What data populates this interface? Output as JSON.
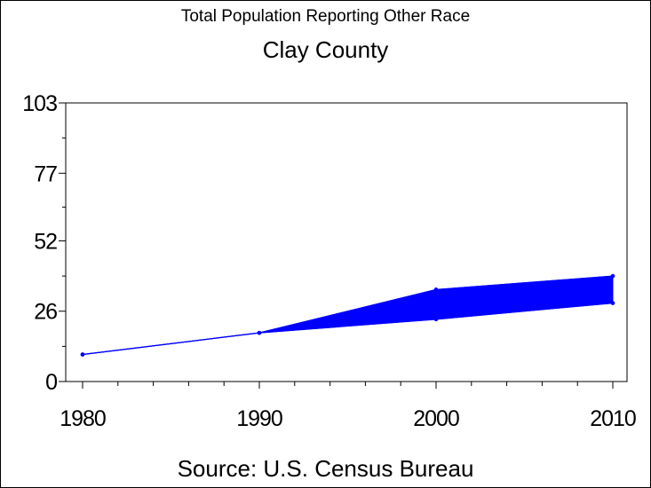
{
  "chart_data": {
    "type": "area",
    "title": "Total Population Reporting Other Race",
    "subtitle": "Clay County",
    "footnote": "Source: U.S. Census Bureau",
    "xlabel": "",
    "ylabel": "",
    "x": [
      1980,
      1990,
      2000,
      2010
    ],
    "x_tick_labels": [
      "1980",
      "1990",
      "2000",
      "2010"
    ],
    "y_ticks": [
      0,
      26,
      52,
      77,
      103
    ],
    "y_tick_labels": [
      "0",
      "26",
      "52",
      "77",
      "103"
    ],
    "ylim": [
      0,
      103
    ],
    "xlim": [
      1980,
      2010
    ],
    "series": [
      {
        "name": "",
        "values": [
          10,
          18,
          34,
          39
        ]
      },
      {
        "values": [
          10,
          18,
          23,
          29
        ]
      }
    ],
    "fill_between_series": true,
    "color": "#0000ff",
    "grid": false,
    "legend": "none"
  }
}
